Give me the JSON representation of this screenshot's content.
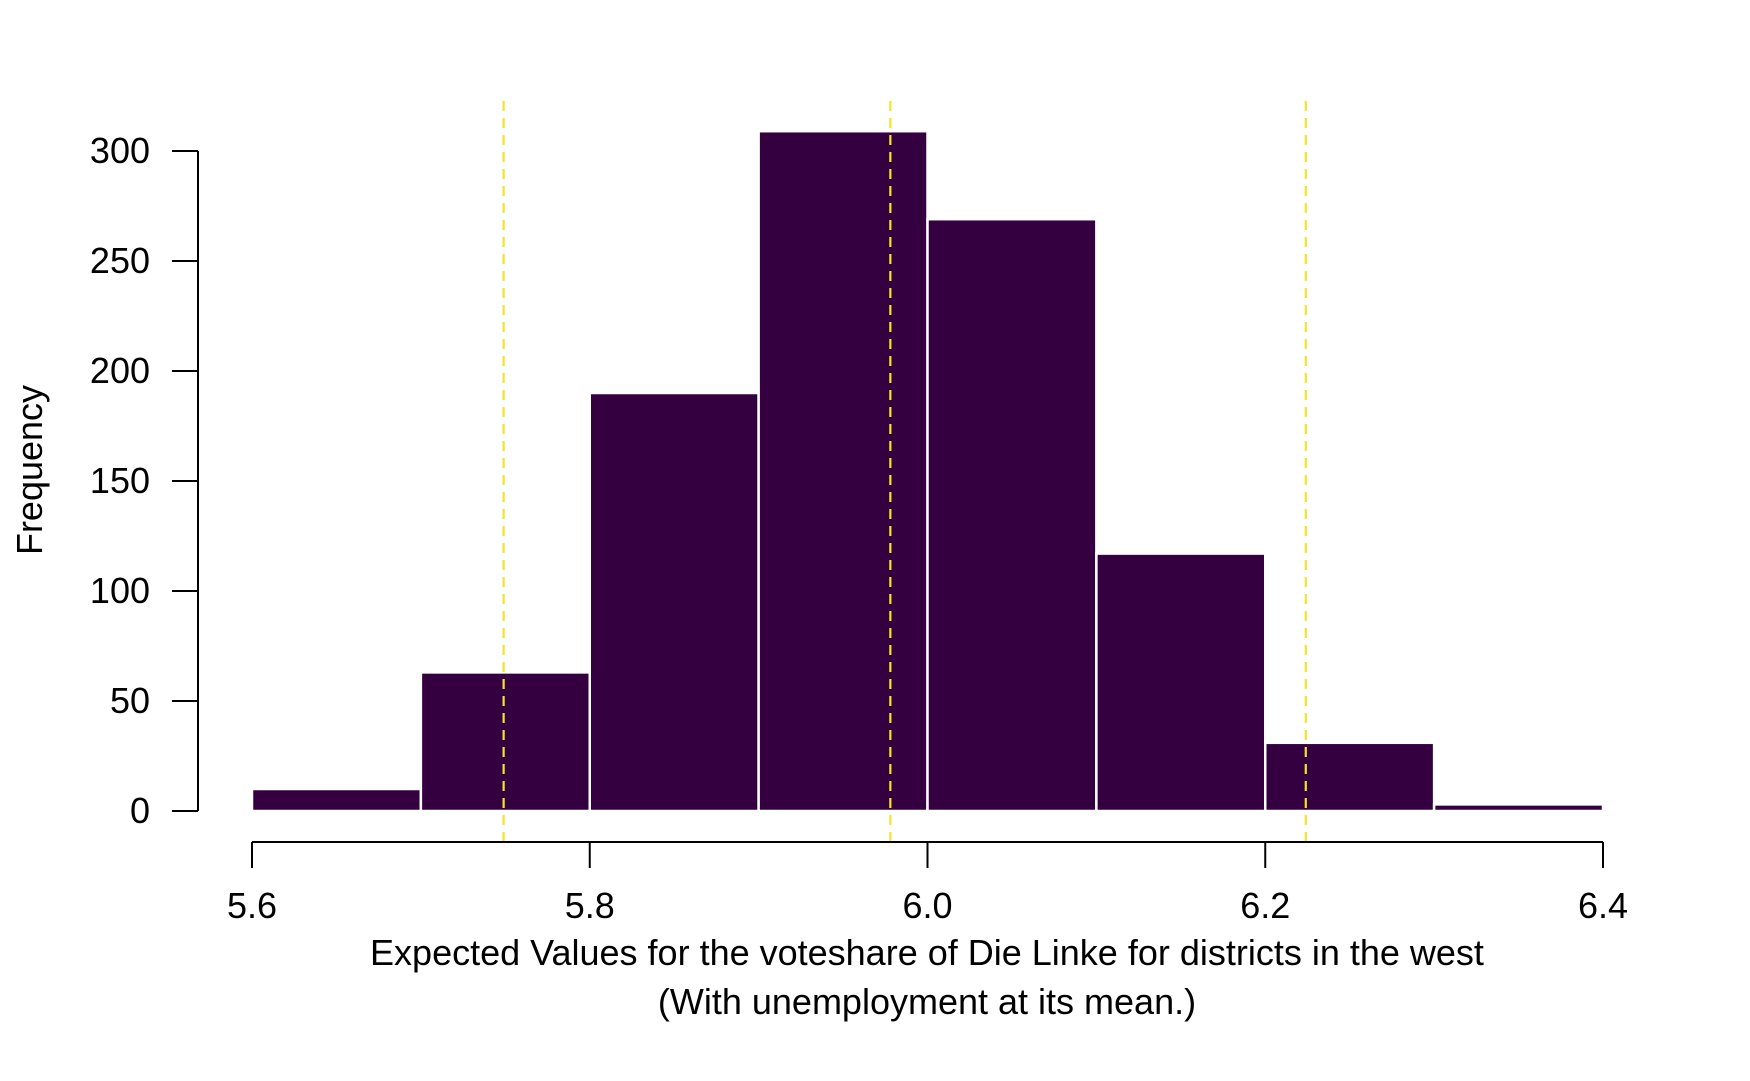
{
  "chart_data": {
    "type": "bar",
    "subtype": "histogram",
    "bins": [
      {
        "x0": 5.6,
        "x1": 5.7,
        "count": 10
      },
      {
        "x0": 5.7,
        "x1": 5.8,
        "count": 63
      },
      {
        "x0": 5.8,
        "x1": 5.9,
        "count": 190
      },
      {
        "x0": 5.9,
        "x1": 6.0,
        "count": 309
      },
      {
        "x0": 6.0,
        "x1": 6.1,
        "count": 269
      },
      {
        "x0": 6.1,
        "x1": 6.2,
        "count": 117
      },
      {
        "x0": 6.2,
        "x1": 6.3,
        "count": 31
      },
      {
        "x0": 6.3,
        "x1": 6.4,
        "count": 3
      }
    ],
    "reference_lines": [
      5.749,
      5.978,
      6.224
    ],
    "reference_line_style": "dashed",
    "xlim": [
      5.6,
      6.4
    ],
    "ylim": [
      0,
      300
    ],
    "xticks": [
      "5.6",
      "5.8",
      "6.0",
      "6.2",
      "6.4"
    ],
    "yticks": [
      "0",
      "50",
      "100",
      "150",
      "200",
      "250",
      "300"
    ],
    "xlabel": "Expected Values for the voteshare of Die Linke for districts in the west",
    "xlabel_line2": "(With unemployment at its mean.)",
    "ylabel": "Frequency",
    "grid": false,
    "colors": {
      "bar_fill": "#35003f",
      "bar_edge": "#ffffff",
      "reference_line": "#f5e325",
      "axis": "#000000"
    }
  }
}
